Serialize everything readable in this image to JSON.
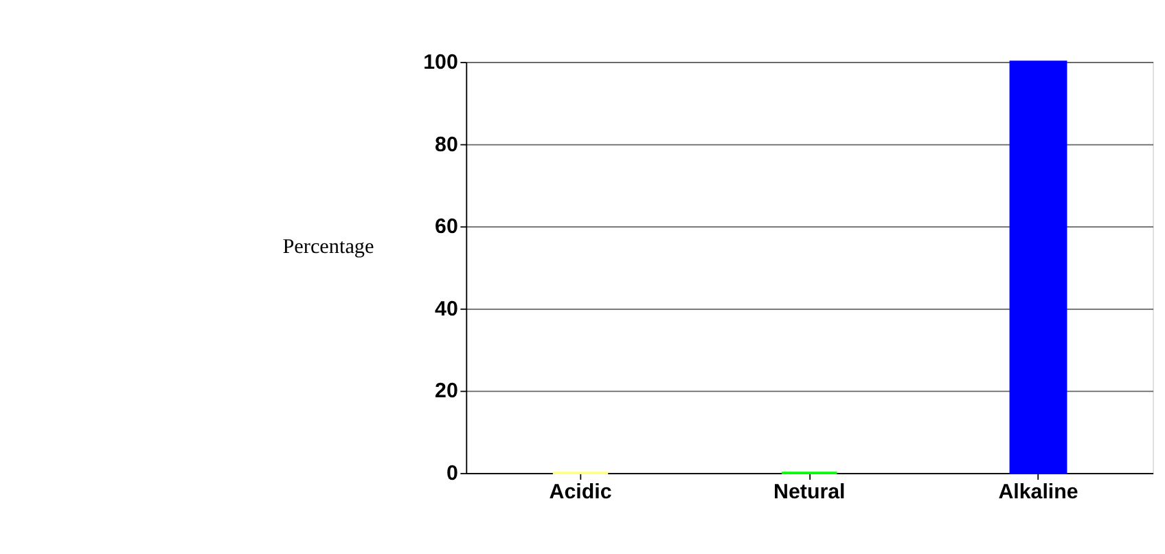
{
  "chart_data": {
    "type": "bar",
    "ylabel": "Percentage",
    "categories": [
      "Acidic",
      "Netural",
      "Alkaline"
    ],
    "values": [
      0,
      0,
      100
    ],
    "colors": [
      "#ffff80",
      "#00ff00",
      "#0000ff"
    ],
    "ylim": [
      0,
      100
    ],
    "yticks": [
      0,
      20,
      40,
      60,
      80,
      100
    ],
    "grid": "y"
  }
}
